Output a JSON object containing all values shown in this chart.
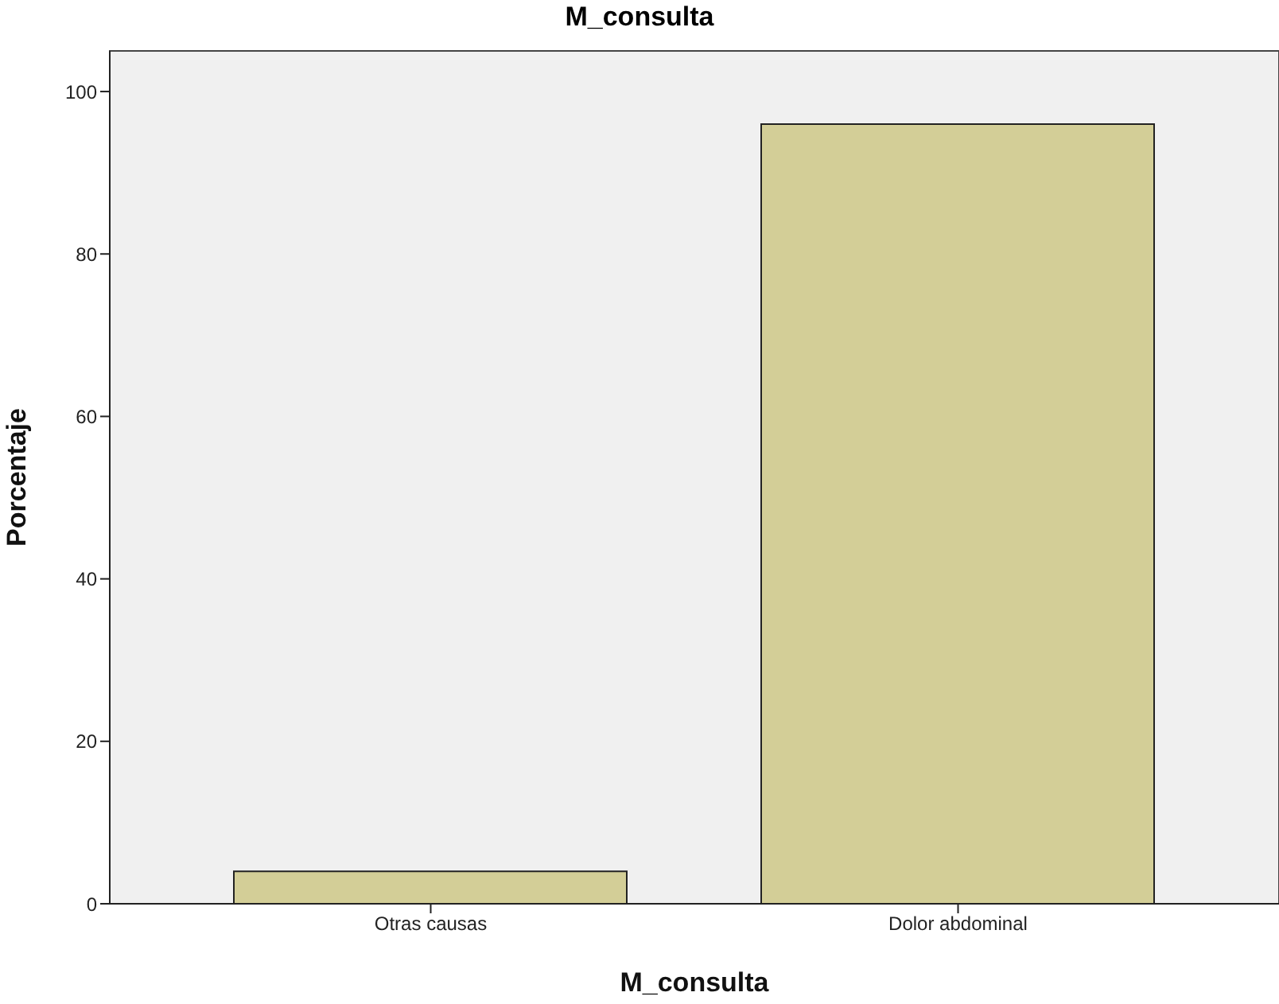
{
  "chart_data": {
    "type": "bar",
    "title": "M_consulta",
    "xlabel": "M_consulta",
    "ylabel": "Porcentaje",
    "categories": [
      "Otras causas",
      "Dolor abdominal"
    ],
    "values": [
      4,
      96
    ],
    "color": "#d3ce97",
    "ylim": [
      0,
      105
    ],
    "yticks": [
      0,
      20,
      40,
      60,
      80,
      100
    ]
  }
}
